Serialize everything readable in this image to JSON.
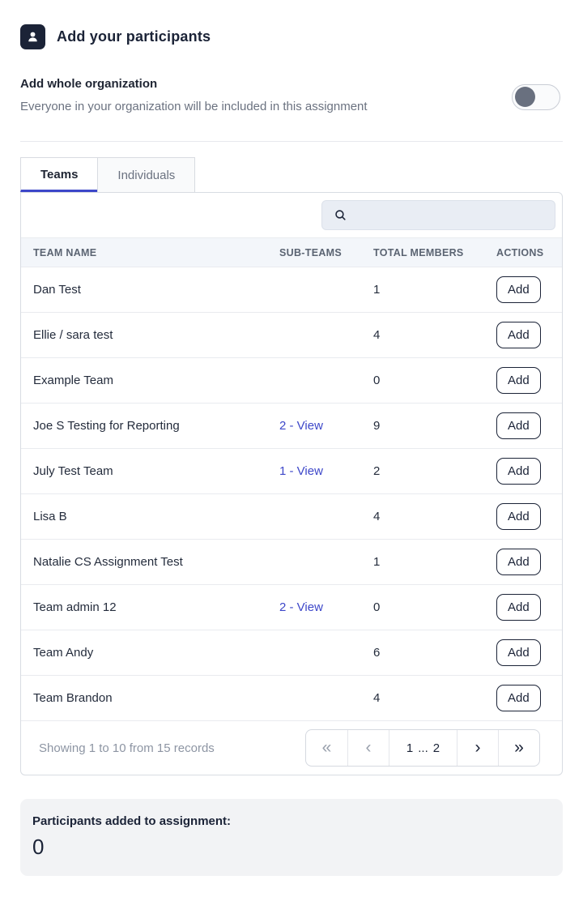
{
  "colors": {
    "accent": "#3d47c9",
    "dark": "#1b2337",
    "muted": "#6b7280",
    "panel_border": "#d8dce2",
    "header_row_bg": "#f3f6fa",
    "search_bg": "#e9edf4",
    "footer_bg": "#f2f3f5"
  },
  "header": {
    "icon": "person-icon",
    "title": "Add your participants"
  },
  "organization": {
    "title": "Add whole organization",
    "description": "Everyone in your organization will be included in this assignment",
    "toggle_state": "off"
  },
  "tabs": [
    {
      "label": "Teams",
      "active": true
    },
    {
      "label": "Individuals",
      "active": false
    }
  ],
  "search": {
    "icon": "search-icon",
    "value": "",
    "placeholder": ""
  },
  "table": {
    "headers": [
      "TEAM NAME",
      "SUB-TEAMS",
      "TOTAL MEMBERS",
      "ACTIONS"
    ],
    "add_button_label": "Add",
    "rows": [
      {
        "name": "Dan Test",
        "subteams": "",
        "members": "1"
      },
      {
        "name": "Ellie / sara test",
        "subteams": "",
        "members": "4"
      },
      {
        "name": "Example Team",
        "subteams": "",
        "members": "0"
      },
      {
        "name": "Joe S Testing for Reporting",
        "subteams": "2 - View",
        "members": "9"
      },
      {
        "name": "July Test Team",
        "subteams": "1 - View",
        "members": "2"
      },
      {
        "name": "Lisa B",
        "subteams": "",
        "members": "4"
      },
      {
        "name": "Natalie CS Assignment Test",
        "subteams": "",
        "members": "1"
      },
      {
        "name": "Team admin 12",
        "subteams": "2 - View",
        "members": "0"
      },
      {
        "name": "Team Andy",
        "subteams": "",
        "members": "6"
      },
      {
        "name": "Team Brandon",
        "subteams": "",
        "members": "4"
      }
    ]
  },
  "pagination": {
    "summary": "Showing 1 to 10 from 15 records",
    "first_icon": "«",
    "prev_icon": "‹",
    "pages": [
      "1",
      "...",
      "2"
    ],
    "next_icon": "›",
    "last_icon": "»"
  },
  "footer": {
    "label": "Participants added to assignment:",
    "count": "0"
  }
}
